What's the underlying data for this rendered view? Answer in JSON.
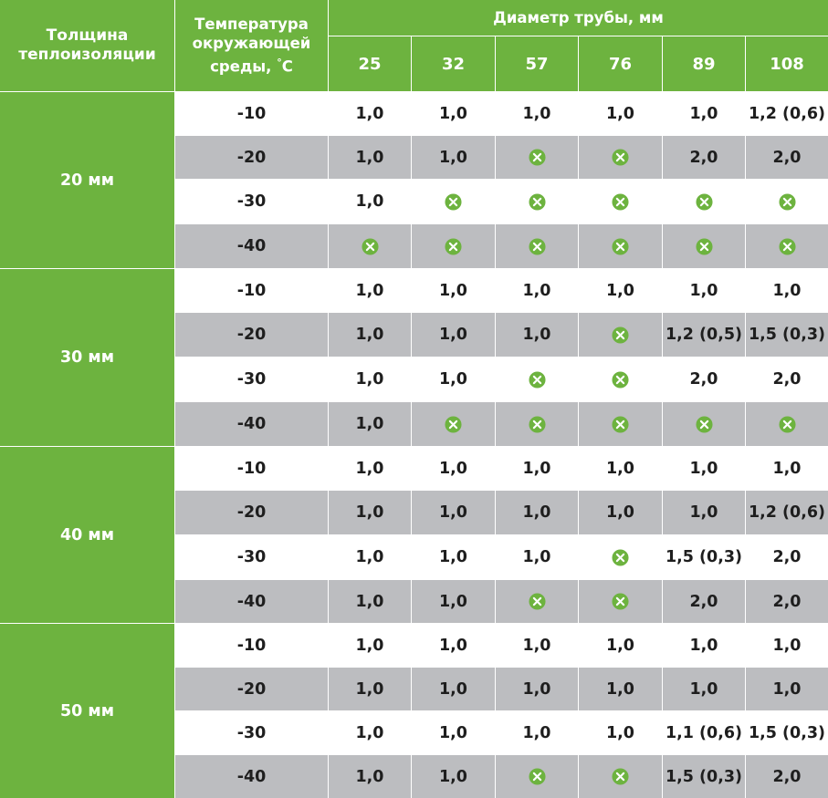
{
  "header": {
    "thickness_line1": "Толщина",
    "thickness_line2": "теплоизоляции",
    "temp_line1": "Температура",
    "temp_line2": "окружающей",
    "temp_line3_pre": "среды, ",
    "temp_line3_deg": "°",
    "temp_line3_unit": "C",
    "diameter_title": "Диаметр трубы, мм",
    "diameters": [
      "25",
      "32",
      "57",
      "76",
      "89",
      "108"
    ]
  },
  "colors": {
    "accent_green": "#6db33f",
    "row_gray": "#bcbdc0",
    "text_dark": "#1e1e1e"
  },
  "not_applicable_icon": "x-circle-icon",
  "groups": [
    {
      "label": "20 мм",
      "rows": [
        {
          "temp": "-10",
          "values": [
            "1,0",
            "1,0",
            "1,0",
            "1,0",
            "1,0",
            "1,2 (0,6)"
          ]
        },
        {
          "temp": "-20",
          "values": [
            "1,0",
            "1,0",
            "x",
            "x",
            "2,0",
            "2,0"
          ]
        },
        {
          "temp": "-30",
          "values": [
            "1,0",
            "x",
            "x",
            "x",
            "x",
            "x"
          ]
        },
        {
          "temp": "-40",
          "values": [
            "x",
            "x",
            "x",
            "x",
            "x",
            "x"
          ]
        }
      ]
    },
    {
      "label": "30 мм",
      "rows": [
        {
          "temp": "-10",
          "values": [
            "1,0",
            "1,0",
            "1,0",
            "1,0",
            "1,0",
            "1,0"
          ]
        },
        {
          "temp": "-20",
          "values": [
            "1,0",
            "1,0",
            "1,0",
            "x",
            "1,2 (0,5)",
            "1,5 (0,3)"
          ]
        },
        {
          "temp": "-30",
          "values": [
            "1,0",
            "1,0",
            "x",
            "x",
            "2,0",
            "2,0"
          ]
        },
        {
          "temp": "-40",
          "values": [
            "1,0",
            "x",
            "x",
            "x",
            "x",
            "x"
          ]
        }
      ]
    },
    {
      "label": "40 мм",
      "rows": [
        {
          "temp": "-10",
          "values": [
            "1,0",
            "1,0",
            "1,0",
            "1,0",
            "1,0",
            "1,0"
          ]
        },
        {
          "temp": "-20",
          "values": [
            "1,0",
            "1,0",
            "1,0",
            "1,0",
            "1,0",
            "1,2 (0,6)"
          ]
        },
        {
          "temp": "-30",
          "values": [
            "1,0",
            "1,0",
            "1,0",
            "x",
            "1,5 (0,3)",
            "2,0"
          ]
        },
        {
          "temp": "-40",
          "values": [
            "1,0",
            "1,0",
            "x",
            "x",
            "2,0",
            "2,0"
          ]
        }
      ]
    },
    {
      "label": "50 мм",
      "rows": [
        {
          "temp": "-10",
          "values": [
            "1,0",
            "1,0",
            "1,0",
            "1,0",
            "1,0",
            "1,0"
          ]
        },
        {
          "temp": "-20",
          "values": [
            "1,0",
            "1,0",
            "1,0",
            "1,0",
            "1,0",
            "1,0"
          ]
        },
        {
          "temp": "-30",
          "values": [
            "1,0",
            "1,0",
            "1,0",
            "1,0",
            "1,1 (0,6)",
            "1,5 (0,3)"
          ]
        },
        {
          "temp": "-40",
          "values": [
            "1,0",
            "1,0",
            "x",
            "x",
            "1,5 (0,3)",
            "2,0"
          ]
        }
      ]
    }
  ]
}
